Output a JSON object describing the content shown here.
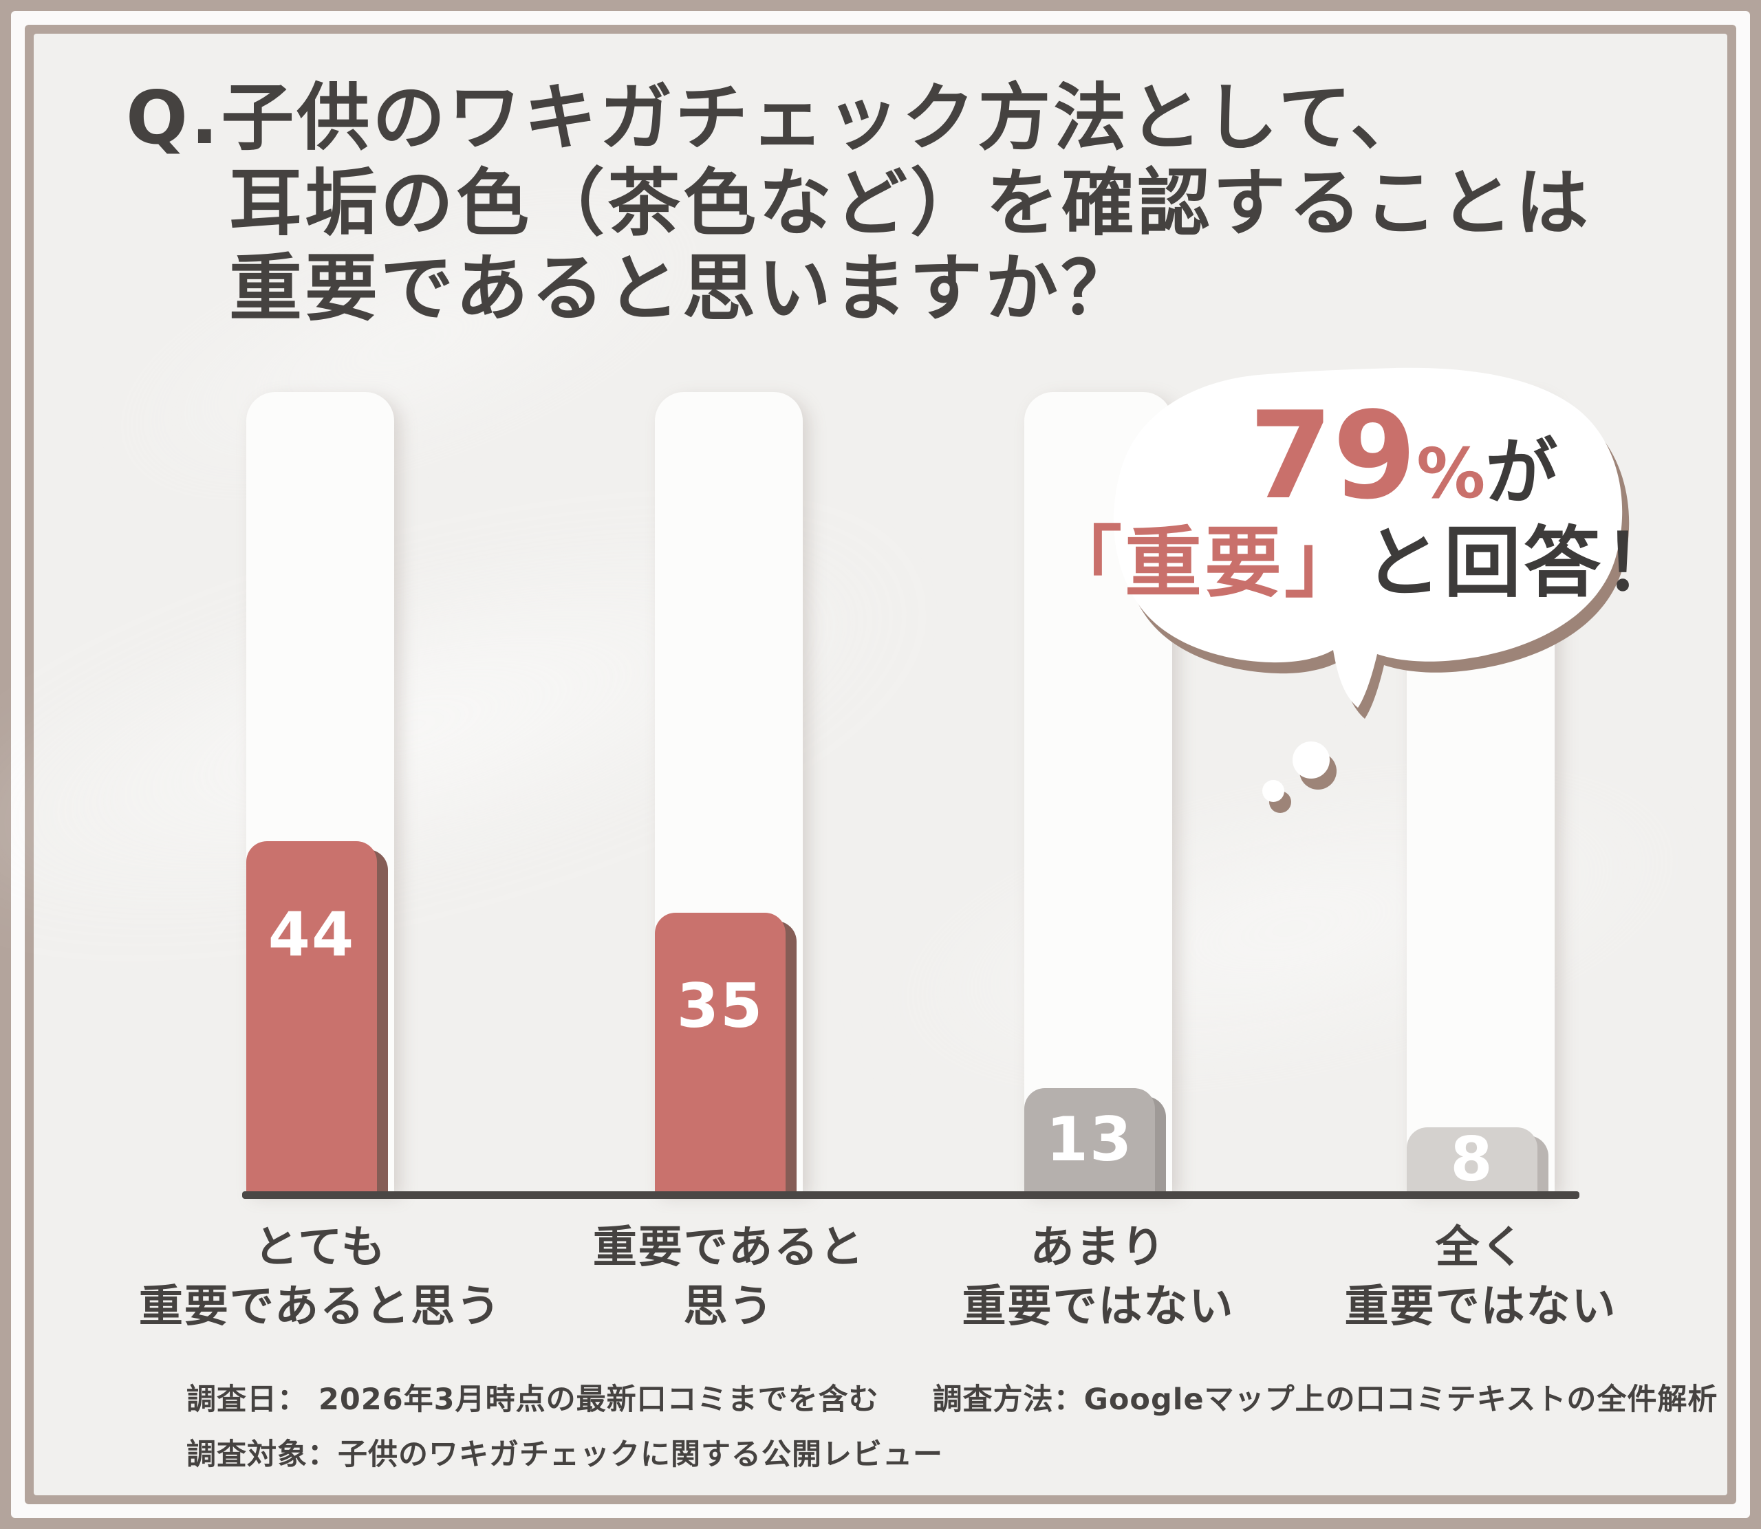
{
  "title": {
    "text": "Q.子供のワキガチェック方法として、\n耳垢の色（茶色など）を確認することは\n重要であると思いますか？"
  },
  "bubble": {
    "percent": "79",
    "percent_sign": "%",
    "suffix": "が",
    "answer_highlight": "「重要」",
    "answer_rest": "と回答！",
    "full_text": "79%が「重要」と回答！"
  },
  "chart_data": {
    "type": "bar",
    "categories": [
      [
        "とても",
        "重要であると思う"
      ],
      [
        "重要であると",
        "思う"
      ],
      [
        "あまり",
        "重要ではない"
      ],
      [
        "全く",
        "重要ではない"
      ]
    ],
    "values": [
      44,
      35,
      13,
      8
    ],
    "ylim": [
      0,
      100
    ],
    "grid": false,
    "legend": "none",
    "annotation": "79%が「重要」と回答！",
    "bar_colors": [
      "#c9726d",
      "#c9726d",
      "#b5b0ad",
      "#d4d1ce"
    ],
    "bar_shadow_colors": [
      "#855d56",
      "#855d56",
      "#9f9a97",
      "#bab5b2"
    ]
  },
  "footer": {
    "line1a": "調査日： 2026年3月時点の最新口コミまでを含む",
    "line1b": "調査方法：Googleマップ上の口コミテキストの全件解析",
    "line2": "調査対象：子供のワキガチェックに関する公開レビュー"
  },
  "colors": {
    "frame": "#b3a49c",
    "background": "#f1f0ee",
    "accent": "#c9706b",
    "text": "#454240",
    "axis": "#4a4745",
    "track": "#fcfcfb",
    "bubble_shadow": "#9d8478"
  }
}
